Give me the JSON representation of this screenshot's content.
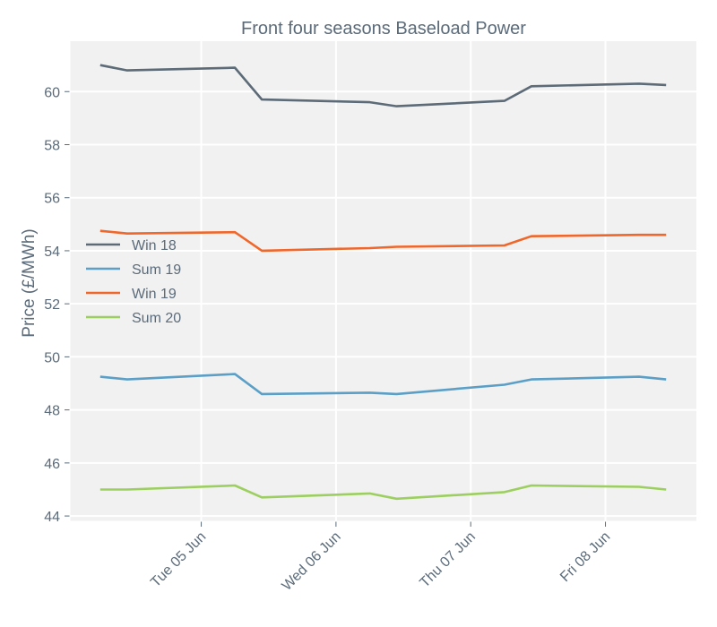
{
  "chart_data": {
    "type": "line",
    "title": "Front four seasons Baseload Power",
    "xlabel": "",
    "ylabel": "Price (£/MWh)",
    "ylim": [
      43.8,
      61.9
    ],
    "yticks": [
      44,
      46,
      48,
      50,
      52,
      54,
      56,
      58,
      60
    ],
    "xticks": [
      {
        "pos": 1.5,
        "label": "Tue 05 Jun"
      },
      {
        "pos": 3.5,
        "label": "Wed 06 Jun"
      },
      {
        "pos": 5.5,
        "label": "Thu 07 Jun"
      },
      {
        "pos": 7.5,
        "label": "Fri 08 Jun"
      }
    ],
    "xlim": [
      -0.45,
      8.85
    ],
    "grid": true,
    "legend_position": "center-left",
    "x": [
      0,
      0.4,
      2,
      2.4,
      4,
      4.4,
      6,
      6.4,
      8,
      8.4
    ],
    "series": [
      {
        "name": "Win 18",
        "color": "#5c6b77",
        "values": [
          61.0,
          60.8,
          60.9,
          59.7,
          59.6,
          59.45,
          59.65,
          60.2,
          60.3,
          60.25
        ]
      },
      {
        "name": "Sum 19",
        "color": "#5b9fc7",
        "values": [
          49.25,
          49.15,
          49.35,
          48.6,
          48.65,
          48.6,
          48.95,
          49.15,
          49.25,
          49.15
        ]
      },
      {
        "name": "Win 19",
        "color": "#f0672b",
        "values": [
          54.75,
          54.65,
          54.7,
          54.0,
          54.1,
          54.15,
          54.2,
          54.55,
          54.6,
          54.6
        ]
      },
      {
        "name": "Sum 20",
        "color": "#9ccf5f",
        "values": [
          45.0,
          45.0,
          45.15,
          44.7,
          44.85,
          44.65,
          44.9,
          45.15,
          45.1,
          45.0
        ]
      }
    ]
  }
}
